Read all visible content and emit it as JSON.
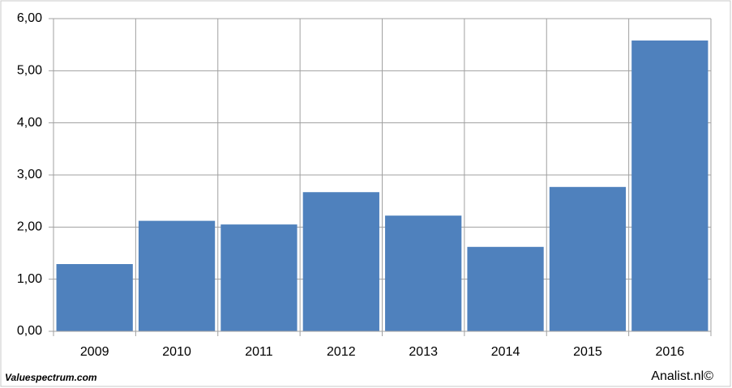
{
  "chart_data": {
    "type": "bar",
    "categories": [
      "2009",
      "2010",
      "2011",
      "2012",
      "2013",
      "2014",
      "2015",
      "2016"
    ],
    "values": [
      1.29,
      2.12,
      2.05,
      2.67,
      2.22,
      1.62,
      2.77,
      5.58
    ],
    "color": "#4f81bd",
    "ylim": [
      0,
      6
    ],
    "yticks": [
      {
        "value": 0,
        "label": "0,00"
      },
      {
        "value": 1,
        "label": "1,00"
      },
      {
        "value": 2,
        "label": "2,00"
      },
      {
        "value": 3,
        "label": "3,00"
      },
      {
        "value": 4,
        "label": "4,00"
      },
      {
        "value": 5,
        "label": "5,00"
      },
      {
        "value": 6,
        "label": "6,00"
      }
    ],
    "grid": true
  },
  "footer": {
    "source_left": "Valuespectrum.com",
    "source_right": "Analist.nl©"
  }
}
